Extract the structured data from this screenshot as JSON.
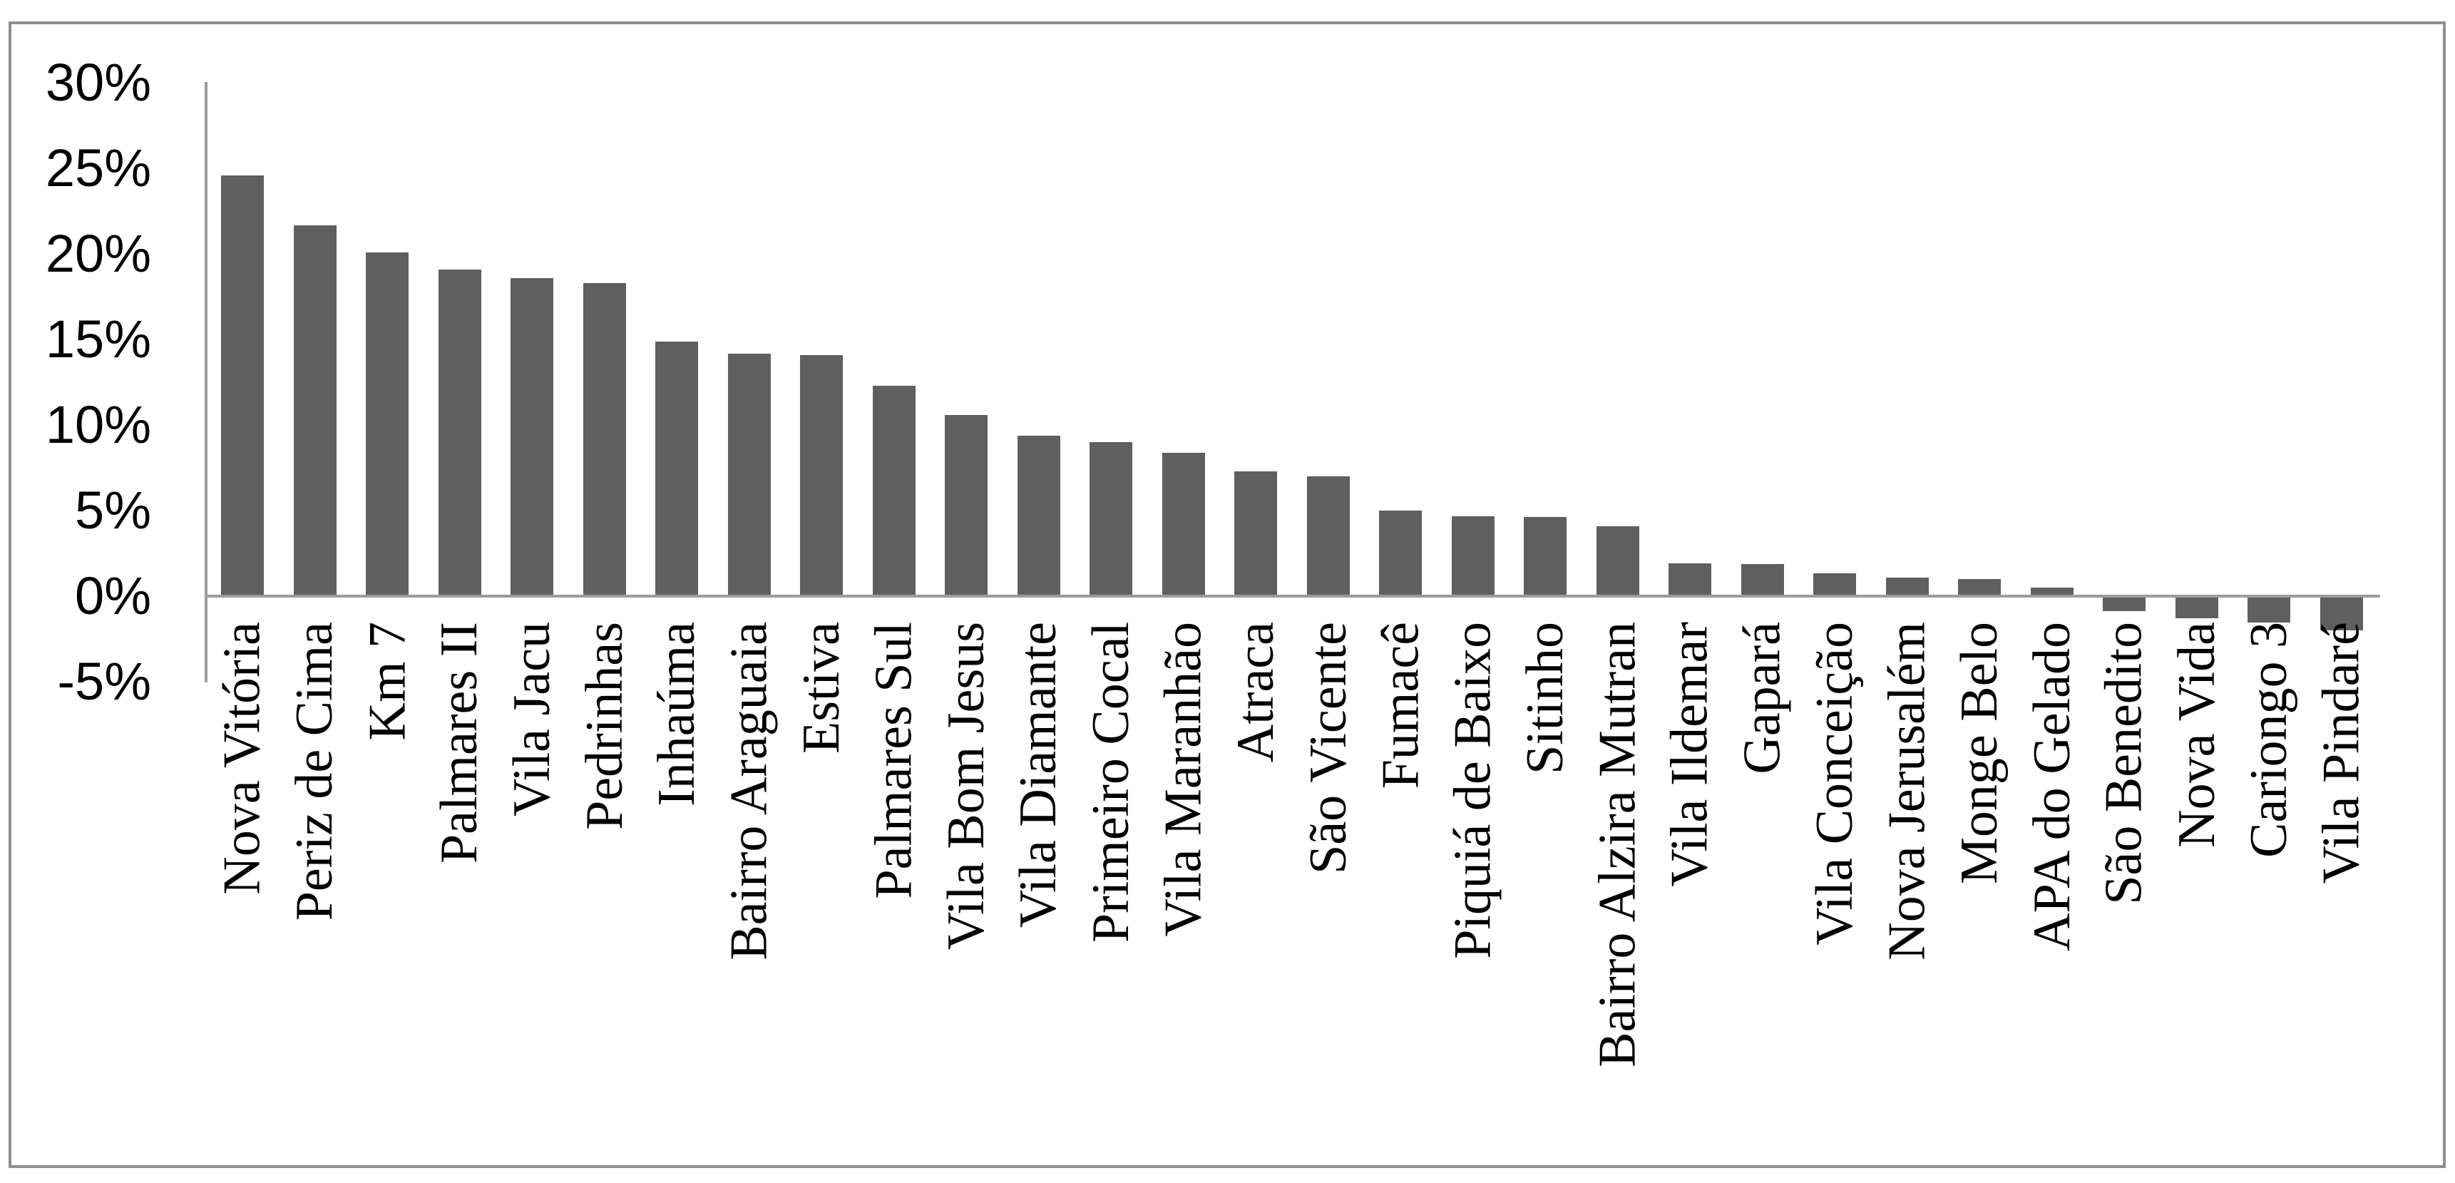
{
  "chart_data": {
    "type": "bar",
    "title": "",
    "xlabel": "",
    "ylabel": "",
    "categories": [
      "Nova Vitória",
      "Periz de Cima",
      "Km 7",
      "Palmares II",
      "Vila Jacu",
      "Pedrinhas",
      "Inhaúma",
      "Bairro Araguaia",
      "Estiva",
      "Palmares Sul",
      "Vila Bom Jesus",
      "Vila Diamante",
      "Primeiro Cocal",
      "Vila Maranhão",
      "Atraca",
      "São Vicente",
      "Fumacê",
      "Piquiá de Baixo",
      "Sitinho",
      "Bairro Alzira Mutran",
      "Vila Ildemar",
      "Gapará",
      "Vila Conceição",
      "Nova Jerusalém",
      "Monge Belo",
      "APA do Gelado",
      "São Benedito",
      "Nova Vida",
      "Cariongo 3",
      "Vila Pindaré"
    ],
    "values": [
      24.5,
      21.6,
      20.0,
      19.0,
      18.5,
      18.2,
      14.8,
      14.1,
      14.0,
      12.2,
      10.5,
      9.3,
      8.9,
      8.3,
      7.2,
      6.9,
      4.9,
      4.6,
      4.55,
      4.0,
      1.85,
      1.8,
      1.25,
      1.0,
      0.9,
      0.4,
      -0.8,
      -1.2,
      -1.45,
      -1.9
    ],
    "y_ticks": [
      {
        "label": "30%",
        "value": 30
      },
      {
        "label": "25%",
        "value": 25
      },
      {
        "label": "20%",
        "value": 20
      },
      {
        "label": "15%",
        "value": 15
      },
      {
        "label": "10%",
        "value": 10
      },
      {
        "label": "5%",
        "value": 5
      },
      {
        "label": "0%",
        "value": 0
      },
      {
        "label": "-5%",
        "value": -5
      }
    ],
    "ylim": [
      -5,
      30
    ],
    "grid": false,
    "legend": null,
    "bar_color": "#5f5f5f",
    "axis_color": "#9b9b9b",
    "frame_color": "#8f8f8f",
    "label_rotation_deg": 90
  }
}
